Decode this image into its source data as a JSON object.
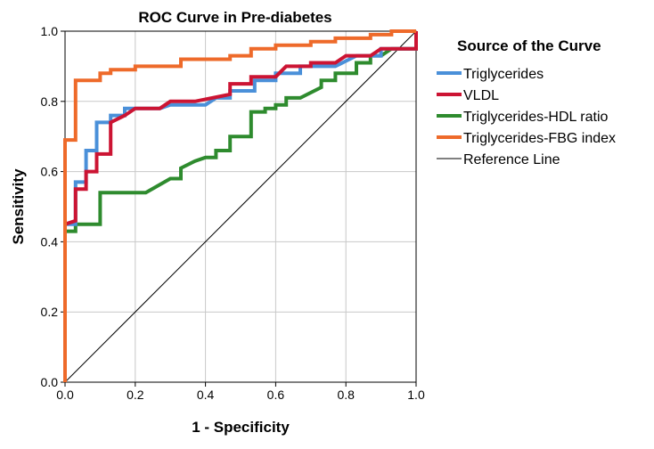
{
  "chart_data": {
    "type": "line",
    "title": "ROC Curve in Pre-diabetes",
    "xlabel": "1 - Specificity",
    "ylabel": "Sensitivity",
    "xlim": [
      0,
      1
    ],
    "ylim": [
      0,
      1
    ],
    "x_ticks": [
      "0.0",
      "0.2",
      "0.4",
      "0.6",
      "0.8",
      "1.0"
    ],
    "y_ticks": [
      "0.0",
      "0.2",
      "0.4",
      "0.6",
      "0.8",
      "1.0"
    ],
    "grid": true,
    "legend_title": "Source of the Curve",
    "legend_position": "right",
    "series": [
      {
        "name": "Triglycerides",
        "color": "#4a90d9",
        "points": [
          [
            0,
            0
          ],
          [
            0,
            0.45
          ],
          [
            0.03,
            0.45
          ],
          [
            0.03,
            0.57
          ],
          [
            0.06,
            0.57
          ],
          [
            0.06,
            0.66
          ],
          [
            0.09,
            0.66
          ],
          [
            0.09,
            0.74
          ],
          [
            0.13,
            0.74
          ],
          [
            0.13,
            0.76
          ],
          [
            0.17,
            0.76
          ],
          [
            0.17,
            0.78
          ],
          [
            0.27,
            0.78
          ],
          [
            0.3,
            0.79
          ],
          [
            0.4,
            0.79
          ],
          [
            0.43,
            0.81
          ],
          [
            0.47,
            0.81
          ],
          [
            0.47,
            0.83
          ],
          [
            0.54,
            0.83
          ],
          [
            0.54,
            0.86
          ],
          [
            0.6,
            0.86
          ],
          [
            0.6,
            0.88
          ],
          [
            0.67,
            0.88
          ],
          [
            0.67,
            0.9
          ],
          [
            0.77,
            0.9
          ],
          [
            0.83,
            0.93
          ],
          [
            0.9,
            0.93
          ],
          [
            0.9,
            0.95
          ],
          [
            1,
            0.95
          ],
          [
            1,
            1
          ]
        ]
      },
      {
        "name": "VLDL",
        "color": "#cc1433",
        "points": [
          [
            0,
            0
          ],
          [
            0,
            0.45
          ],
          [
            0.03,
            0.46
          ],
          [
            0.03,
            0.55
          ],
          [
            0.06,
            0.55
          ],
          [
            0.06,
            0.6
          ],
          [
            0.09,
            0.6
          ],
          [
            0.09,
            0.65
          ],
          [
            0.13,
            0.65
          ],
          [
            0.13,
            0.74
          ],
          [
            0.17,
            0.76
          ],
          [
            0.2,
            0.78
          ],
          [
            0.27,
            0.78
          ],
          [
            0.3,
            0.8
          ],
          [
            0.37,
            0.8
          ],
          [
            0.47,
            0.82
          ],
          [
            0.47,
            0.85
          ],
          [
            0.53,
            0.85
          ],
          [
            0.53,
            0.87
          ],
          [
            0.6,
            0.87
          ],
          [
            0.63,
            0.9
          ],
          [
            0.7,
            0.9
          ],
          [
            0.7,
            0.91
          ],
          [
            0.77,
            0.91
          ],
          [
            0.8,
            0.93
          ],
          [
            0.87,
            0.93
          ],
          [
            0.9,
            0.95
          ],
          [
            1,
            0.95
          ],
          [
            1,
            1
          ]
        ]
      },
      {
        "name": "Triglycerides-HDL ratio",
        "color": "#2e8b2e",
        "points": [
          [
            0,
            0
          ],
          [
            0,
            0.43
          ],
          [
            0.03,
            0.43
          ],
          [
            0.03,
            0.45
          ],
          [
            0.1,
            0.45
          ],
          [
            0.1,
            0.54
          ],
          [
            0.23,
            0.54
          ],
          [
            0.3,
            0.58
          ],
          [
            0.33,
            0.58
          ],
          [
            0.33,
            0.61
          ],
          [
            0.37,
            0.63
          ],
          [
            0.4,
            0.64
          ],
          [
            0.43,
            0.64
          ],
          [
            0.43,
            0.66
          ],
          [
            0.47,
            0.66
          ],
          [
            0.47,
            0.7
          ],
          [
            0.53,
            0.7
          ],
          [
            0.53,
            0.77
          ],
          [
            0.57,
            0.77
          ],
          [
            0.57,
            0.78
          ],
          [
            0.6,
            0.78
          ],
          [
            0.6,
            0.79
          ],
          [
            0.63,
            0.79
          ],
          [
            0.63,
            0.81
          ],
          [
            0.67,
            0.81
          ],
          [
            0.73,
            0.84
          ],
          [
            0.73,
            0.86
          ],
          [
            0.77,
            0.86
          ],
          [
            0.77,
            0.88
          ],
          [
            0.83,
            0.88
          ],
          [
            0.83,
            0.91
          ],
          [
            0.87,
            0.91
          ],
          [
            0.87,
            0.93
          ],
          [
            0.9,
            0.93
          ],
          [
            0.93,
            0.95
          ],
          [
            1,
            0.95
          ],
          [
            1,
            1
          ]
        ]
      },
      {
        "name": "Triglycerides-FBG index",
        "color": "#ee6a2a",
        "points": [
          [
            0,
            0
          ],
          [
            0,
            0.69
          ],
          [
            0.03,
            0.69
          ],
          [
            0.03,
            0.86
          ],
          [
            0.1,
            0.86
          ],
          [
            0.1,
            0.88
          ],
          [
            0.13,
            0.88
          ],
          [
            0.13,
            0.89
          ],
          [
            0.2,
            0.89
          ],
          [
            0.2,
            0.9
          ],
          [
            0.33,
            0.9
          ],
          [
            0.33,
            0.92
          ],
          [
            0.47,
            0.92
          ],
          [
            0.47,
            0.93
          ],
          [
            0.53,
            0.93
          ],
          [
            0.53,
            0.95
          ],
          [
            0.6,
            0.95
          ],
          [
            0.6,
            0.96
          ],
          [
            0.7,
            0.96
          ],
          [
            0.7,
            0.97
          ],
          [
            0.77,
            0.97
          ],
          [
            0.77,
            0.98
          ],
          [
            0.87,
            0.98
          ],
          [
            0.87,
            0.99
          ],
          [
            0.93,
            0.99
          ],
          [
            0.93,
            1
          ],
          [
            1,
            1
          ]
        ]
      },
      {
        "name": "Reference Line",
        "color": "#000000",
        "points": [
          [
            0,
            0
          ],
          [
            1,
            1
          ]
        ]
      }
    ]
  }
}
